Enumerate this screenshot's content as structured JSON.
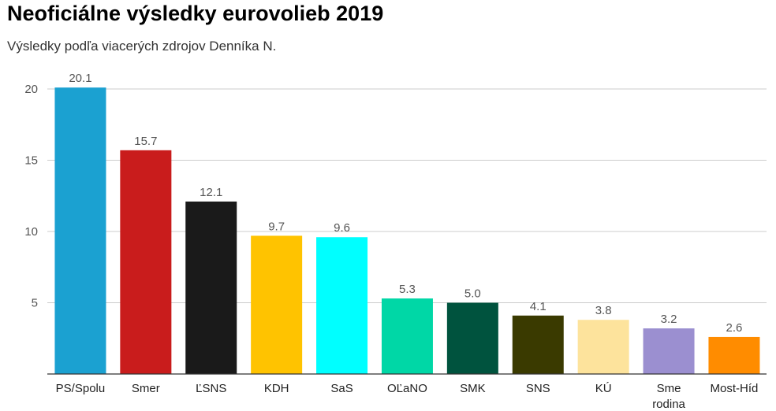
{
  "title": "Neoficiálne výsledky eurovolieb 2019",
  "subtitle": "Výsledky podľa viacerých zdrojov Denníka N.",
  "chart_data": {
    "type": "bar",
    "categories": [
      "PS/Spolu",
      "Smer",
      "ĽSNS",
      "KDH",
      "SaS",
      "OĽaNO",
      "SMK",
      "SNS",
      "KÚ",
      "Sme rodina",
      "Most-Híd"
    ],
    "values": [
      20.1,
      15.7,
      12.1,
      9.7,
      9.6,
      5.3,
      5.0,
      4.1,
      3.8,
      3.2,
      2.6
    ],
    "value_labels": [
      "20.1",
      "15.7",
      "12.1",
      "9.7",
      "9.6",
      "5.3",
      "5.0",
      "4.1",
      "3.8",
      "3.2",
      "2.6"
    ],
    "colors": [
      "#1ba1d1",
      "#c91c1c",
      "#1a1a1a",
      "#ffc300",
      "#00ffff",
      "#00d7a6",
      "#00533e",
      "#3a3a00",
      "#fde39c",
      "#9b8fd0",
      "#ff8c00"
    ],
    "yticks": [
      5,
      10,
      15,
      20
    ],
    "ylim": [
      0,
      20.5
    ],
    "grid": true,
    "gridline_color": "#cccccc",
    "axis_color": "#333333"
  }
}
